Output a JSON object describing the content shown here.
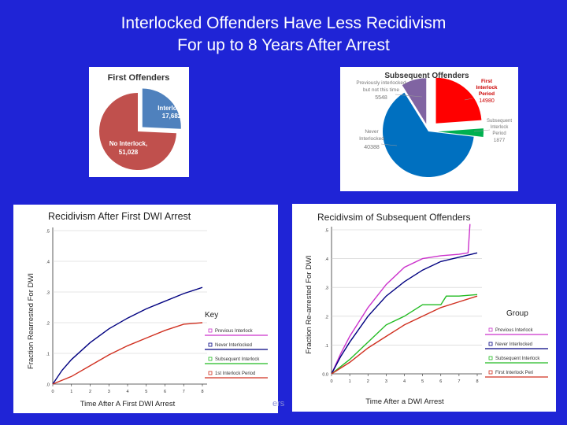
{
  "slide": {
    "title_line1": "Interlocked Offenders Have Less Recidivism",
    "title_line2": "For up to 8 Years After Arrest",
    "footer": "ers"
  },
  "colors": {
    "background": "#1f24d6",
    "pie_first_interlock": "#4f81bd",
    "pie_first_no_interlock": "#c0504d",
    "pie_sub_previously": "#8064a2",
    "pie_sub_first_period": "#ff0000",
    "pie_sub_subsequent": "#00b050",
    "pie_sub_never": "#0070c0",
    "line_previous": "#cc33cc",
    "line_never": "#000080",
    "line_subsequent": "#22bb22",
    "line_first_period": "#d03020"
  },
  "chart_data": [
    {
      "type": "pie",
      "title": "First Offenders",
      "slices": [
        {
          "label": "Interlock,",
          "value_text": "17,682",
          "value": 17682
        },
        {
          "label": "No Interlock,",
          "value_text": "51,028",
          "value": 51028
        }
      ]
    },
    {
      "type": "pie",
      "title": "Subsequent Offenders",
      "slices": [
        {
          "label": "Previously interlocked but not this time",
          "value_text": "5548",
          "value": 5548
        },
        {
          "label": "First Interlock Period",
          "value_text": "14980",
          "value": 14980
        },
        {
          "label": "Subsequent Interlock Period",
          "value_text": "1877",
          "value": 1877
        },
        {
          "label": "Never Interlocked",
          "value_text": "40388",
          "value": 40388
        }
      ]
    },
    {
      "type": "line",
      "title": "Recidivism After First DWI Arrest",
      "xlabel": "Time After A First DWI Arrest",
      "ylabel": "Fraction Rearrested For DWI",
      "xlim": [
        0,
        8
      ],
      "ylim": [
        0,
        0.5
      ],
      "x_ticks": [
        "0",
        "1",
        "2",
        "3",
        "4",
        "5",
        "6",
        "7",
        "8"
      ],
      "y_ticks": [
        ".0",
        ".1",
        ".2",
        ".3",
        ".4",
        ".5"
      ],
      "legend_title": "Key",
      "legend_position": "right",
      "series": [
        {
          "name": "Previous Interlock",
          "color": "#cc33cc",
          "points": []
        },
        {
          "name": "Never Interlocked",
          "color": "#000080",
          "points": [
            [
              0,
              0
            ],
            [
              0.5,
              0.045
            ],
            [
              1,
              0.08
            ],
            [
              2,
              0.135
            ],
            [
              3,
              0.18
            ],
            [
              4,
              0.215
            ],
            [
              5,
              0.245
            ],
            [
              6,
              0.27
            ],
            [
              7,
              0.295
            ],
            [
              8,
              0.315
            ]
          ]
        },
        {
          "name": "Subsequent Interlock",
          "color": "#22bb22",
          "points": []
        },
        {
          "name": "1st Interlock Period",
          "color": "#d03020",
          "points": [
            [
              0,
              0
            ],
            [
              1,
              0.025
            ],
            [
              2,
              0.06
            ],
            [
              3,
              0.095
            ],
            [
              4,
              0.125
            ],
            [
              5,
              0.15
            ],
            [
              6,
              0.175
            ],
            [
              7,
              0.195
            ],
            [
              8,
              0.2
            ]
          ]
        }
      ]
    },
    {
      "type": "line",
      "title": "Recidivsim of Subsequent Offenders",
      "xlabel": "Time After a DWI Arrest",
      "ylabel": "Fraction Re-arrested For DWI",
      "xlim": [
        0,
        8
      ],
      "ylim": [
        0,
        0.5
      ],
      "x_ticks": [
        "0",
        "1",
        "2",
        "3",
        "4",
        "5",
        "6",
        "7",
        "8"
      ],
      "y_ticks": [
        "0.0",
        ".1",
        ".2",
        ".3",
        ".4",
        ".5"
      ],
      "legend_title": "Group",
      "legend_position": "right",
      "series": [
        {
          "name": "Previous Interlock",
          "color": "#cc33cc",
          "points": [
            [
              0,
              0
            ],
            [
              0.5,
              0.07
            ],
            [
              1,
              0.13
            ],
            [
              2,
              0.23
            ],
            [
              3,
              0.31
            ],
            [
              4,
              0.37
            ],
            [
              5,
              0.4
            ],
            [
              6,
              0.41
            ],
            [
              7,
              0.415
            ],
            [
              7.5,
              0.42
            ],
            [
              7.6,
              0.52
            ]
          ]
        },
        {
          "name": "Never Interlocked",
          "color": "#000080",
          "points": [
            [
              0,
              0
            ],
            [
              0.5,
              0.06
            ],
            [
              1,
              0.11
            ],
            [
              2,
              0.2
            ],
            [
              3,
              0.27
            ],
            [
              4,
              0.32
            ],
            [
              5,
              0.36
            ],
            [
              6,
              0.39
            ],
            [
              7,
              0.405
            ],
            [
              8,
              0.42
            ]
          ]
        },
        {
          "name": "Subsequent Interlock",
          "color": "#22bb22",
          "points": [
            [
              0,
              0
            ],
            [
              1,
              0.05
            ],
            [
              2,
              0.11
            ],
            [
              3,
              0.17
            ],
            [
              4,
              0.2
            ],
            [
              5,
              0.24
            ],
            [
              6,
              0.24
            ],
            [
              6.3,
              0.27
            ],
            [
              7,
              0.27
            ],
            [
              8,
              0.275
            ]
          ]
        },
        {
          "name": "First Interlock Peri",
          "color": "#d03020",
          "points": [
            [
              0,
              0
            ],
            [
              1,
              0.04
            ],
            [
              2,
              0.09
            ],
            [
              3,
              0.13
            ],
            [
              4,
              0.17
            ],
            [
              5,
              0.2
            ],
            [
              6,
              0.23
            ],
            [
              7,
              0.25
            ],
            [
              8,
              0.27
            ]
          ]
        }
      ]
    }
  ]
}
